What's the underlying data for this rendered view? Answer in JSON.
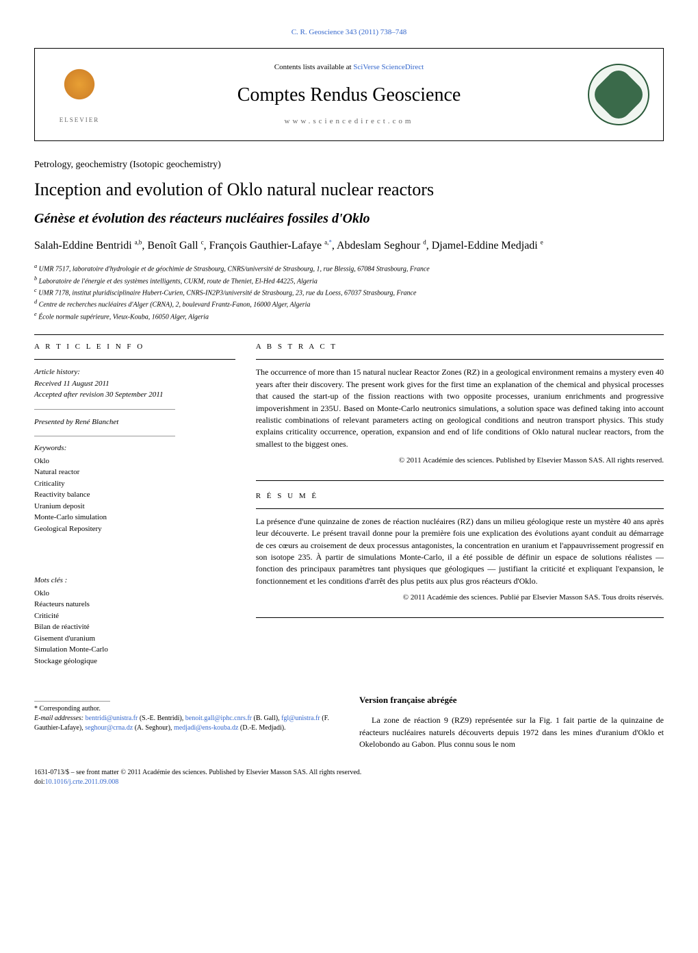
{
  "citation": "C. R. Geoscience 343 (2011) 738–748",
  "header": {
    "contents_available": "Contents lists available at ",
    "contents_link": "SciVerse ScienceDirect",
    "journal_name": "Comptes Rendus Geoscience",
    "site": "www.sciencedirect.com",
    "publisher": "ELSEVIER"
  },
  "section_label": "Petrology, geochemistry (Isotopic geochemistry)",
  "title": "Inception and evolution of Oklo natural nuclear reactors",
  "subtitle": "Génèse et évolution des réacteurs nucléaires fossiles d'Oklo",
  "authors_html": "Salah-Eddine Bentridi <sup class='marker'>a,b</sup>, Benoît Gall <sup class='marker'>c</sup>, François Gauthier-Lafaye <sup class='marker'>a,</sup><sup class='marker asterisk'>*</sup>, Abdeslam Seghour <sup class='marker'>d</sup>, Djamel-Eddine Medjadi <sup class='marker'>e</sup>",
  "affiliations": [
    {
      "marker": "a",
      "text": "UMR 7517, laboratoire d'hydrologie et de géochimie de Strasbourg, CNRS/université de Strasbourg, 1, rue Blessig, 67084 Strasbourg, France"
    },
    {
      "marker": "b",
      "text": "Laboratoire de l'énergie et des systèmes intelligents, CUKM, route de Theniet, El-Hed 44225, Algeria"
    },
    {
      "marker": "c",
      "text": "UMR 7178, institut pluridisciplinaire Hubert-Curien, CNRS-IN2P3/université de Strasbourg, 23, rue du Loess, 67037 Strasbourg, France"
    },
    {
      "marker": "d",
      "text": "Centre de recherches nucléaires d'Alger (CRNA), 2, boulevard Frantz-Fanon, 16000 Alger, Algeria"
    },
    {
      "marker": "e",
      "text": "École normale supérieure, Vieux-Kouba, 16050 Alger, Algeria"
    }
  ],
  "article_info": {
    "heading": "A R T I C L E   I N F O",
    "history_label": "Article history:",
    "received": "Received 11 August 2011",
    "accepted": "Accepted after revision 30 September 2011",
    "presented": "Presented by René Blanchet",
    "keywords_label": "Keywords:",
    "keywords": [
      "Oklo",
      "Natural reactor",
      "Criticality",
      "Reactivity balance",
      "Uranium deposit",
      "Monte-Carlo simulation",
      "Geological Repositery"
    ],
    "mots_cles_label": "Mots clés :",
    "mots_cles": [
      "Oklo",
      "Réacteurs naturels",
      "Criticité",
      "Bilan de réactivité",
      "Gisement d'uranium",
      "Simulation Monte-Carlo",
      "Stockage géologique"
    ]
  },
  "abstract": {
    "heading": "A B S T R A C T",
    "text": "The occurrence of more than 15 natural nuclear Reactor Zones (RZ) in a geological environment remains a mystery even 40 years after their discovery. The present work gives for the first time an explanation of the chemical and physical processes that caused the start-up of the fission reactions with two opposite processes, uranium enrichments and progressive impoverishment in 235U. Based on Monte-Carlo neutronics simulations, a solution space was defined taking into account realistic combinations of relevant parameters acting on geological conditions and neutron transport physics. This study explains criticality occurrence, operation, expansion and end of life conditions of Oklo natural nuclear reactors, from the smallest to the biggest ones.",
    "copyright": "© 2011 Académie des sciences. Published by Elsevier Masson SAS. All rights reserved."
  },
  "resume": {
    "heading": "R É S U M É",
    "text": "La présence d'une quinzaine de zones de réaction nucléaires (RZ) dans un milieu géologique reste un mystère 40 ans après leur découverte. Le présent travail donne pour la première fois une explication des évolutions ayant conduit au démarrage de ces cœurs au croisement de deux processus antagonistes, la concentration en uranium et l'appauvrissement progressif en son isotope 235. À partir de simulations Monte-Carlo, il a été possible de définir un espace de solutions réalistes — fonction des principaux paramètres tant physiques que géologiques — justifiant la criticité et expliquant l'expansion, le fonctionnement et les conditions d'arrêt des plus petits aux plus gros réacteurs d'Oklo.",
    "copyright": "© 2011 Académie des sciences. Publié par Elsevier Masson SAS. Tous droits réservés."
  },
  "version_fr": {
    "heading": "Version française abrégée",
    "text": "La zone de réaction 9 (RZ9) représentée sur la Fig. 1 fait partie de la quinzaine de réacteurs nucléaires naturels découverts depuis 1972 dans les mines d'uranium d'Oklo et Okelobondo au Gabon. Plus connu sous le nom"
  },
  "correspondence": {
    "label": "* Corresponding author.",
    "email_label": "E-mail addresses: ",
    "emails": [
      {
        "addr": "bentridi@unistra.fr",
        "name": "(S.-E. Bentridi)"
      },
      {
        "addr": "benoit.gall@iphc.cnrs.fr",
        "name": "(B. Gall)"
      },
      {
        "addr": "fgl@unistra.fr",
        "name": "(F. Gauthier-Lafaye)"
      },
      {
        "addr": "seghour@crna.dz",
        "name": "(A. Seghour)"
      },
      {
        "addr": "medjadi@ens-kouba.dz",
        "name": "(D.-E. Medjadi)"
      }
    ]
  },
  "footer": {
    "front_matter": "1631-0713/$ – see front matter © 2011 Académie des sciences. Published by Elsevier Masson SAS. All rights reserved.",
    "doi_label": "doi:",
    "doi": "10.1016/j.crte.2011.09.008"
  }
}
